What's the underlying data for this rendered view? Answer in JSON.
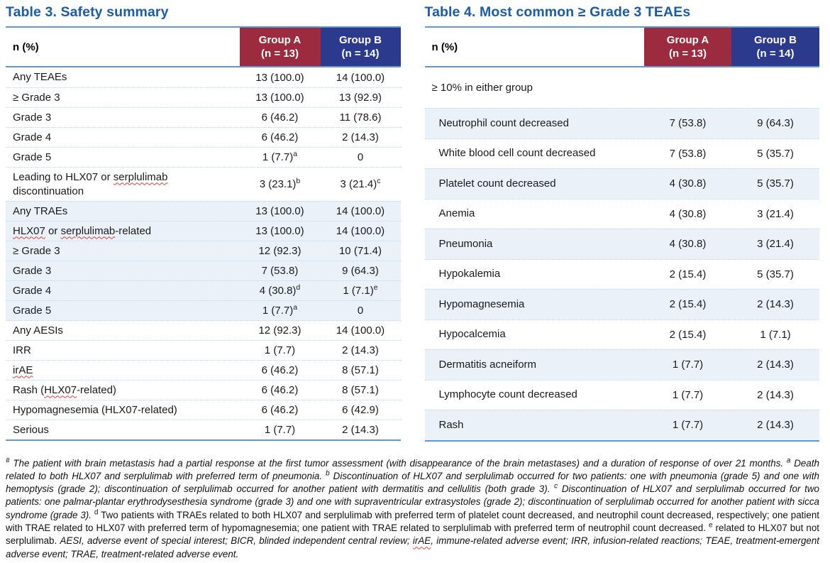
{
  "colors": {
    "title_blue": "#1A5CA8",
    "group_a_maroon": "#9C2B40",
    "group_b_navy": "#2B3A8C",
    "row_shade_blue": "#EBF1F8",
    "rule_blue": "#5B9BD5",
    "dotted_separator_blue": "#BDD7EE",
    "spellcheck_wavy_red": "#E03C31"
  },
  "tables": [
    {
      "title": "Table 3. Safety summary",
      "header_label": "n (%)",
      "groups": [
        {
          "name": "Group A",
          "n": "(n = 13)",
          "color": "#9C2B40"
        },
        {
          "name": "Group B",
          "n": "(n = 14)",
          "color": "#2B3A8C"
        }
      ],
      "rows": [
        {
          "label": "Any TEAEs",
          "indent": 0,
          "a": "13 (100.0)",
          "b": "14 (100.0)"
        },
        {
          "label": "≥ Grade 3",
          "indent": 1,
          "a": "13 (100.0)",
          "b": "13 (92.9)"
        },
        {
          "label": "Grade 3",
          "indent": 2,
          "a": "6 (46.2)",
          "b": "11 (78.6)"
        },
        {
          "label": "Grade 4",
          "indent": 2,
          "a": "6 (46.2)",
          "b": "2 (14.3)"
        },
        {
          "label": "Grade 5",
          "indent": 2,
          "a": "1 (7.7)",
          "a_sup": "a",
          "b": "0"
        },
        {
          "label": "Leading to HLX07 or serplulimab discontinuation",
          "indent": 1,
          "tall": true,
          "squiggles": [
            "serplulimab"
          ],
          "a": "3 (23.1)",
          "a_sup": "b",
          "b": "3 (21.4)",
          "b_sup": "c"
        },
        {
          "label": "Any TRAEs",
          "indent": 0,
          "shaded": true,
          "a": "13 (100.0)",
          "b": "14 (100.0)"
        },
        {
          "label": "HLX07 or serplulimab-related",
          "indent": 1,
          "shaded": true,
          "squiggles": [
            "HLX07",
            "serplulimab"
          ],
          "a": "13 (100.0)",
          "b": "14 (100.0)"
        },
        {
          "label": "≥ Grade 3",
          "indent": 2,
          "shaded": true,
          "a": "12 (92.3)",
          "b": "10 (71.4)"
        },
        {
          "label": "Grade 3",
          "indent": 3,
          "shaded": true,
          "a": "7 (53.8)",
          "b": "9 (64.3)"
        },
        {
          "label": "Grade 4",
          "indent": 3,
          "shaded": true,
          "a": "4 (30.8)",
          "a_sup": "d",
          "b": "1 (7.1)",
          "b_sup": "e"
        },
        {
          "label": "Grade 5",
          "indent": 3,
          "shaded": true,
          "a": "1 (7.7)",
          "a_sup": "a",
          "b": "0"
        },
        {
          "label": "Any AESIs",
          "indent": 0,
          "a": "12 (92.3)",
          "b": "14 (100.0)"
        },
        {
          "label": "IRR",
          "indent": 1,
          "a": "1 (7.7)",
          "b": "2 (14.3)"
        },
        {
          "label": "irAE",
          "indent": 1,
          "squiggles": [
            "irAE"
          ],
          "a": "6 (46.2)",
          "b": "8 (57.1)"
        },
        {
          "label": "Rash (HLX07-related)",
          "indent": 1,
          "squiggles": [
            "HLX07"
          ],
          "a": "6 (46.2)",
          "b": "8 (57.1)"
        },
        {
          "label": "Hypomagnesemia (HLX07-related)",
          "indent": 1,
          "a": "6 (46.2)",
          "b": "6 (42.9)"
        },
        {
          "label": "Serious",
          "indent": 1,
          "a": "1 (7.7)",
          "b": "2 (14.3)"
        }
      ]
    },
    {
      "title": "Table 4. Most common ≥ Grade 3 TEAEs",
      "header_label": "n (%)",
      "groups": [
        {
          "name": "Group A",
          "n": "(n = 13)",
          "color": "#9C2B40"
        },
        {
          "name": "Group B",
          "n": "(n = 14)",
          "color": "#2B3A8C"
        }
      ],
      "section_label": "≥ 10% in either group",
      "rows": [
        {
          "label": "Neutrophil count decreased",
          "indent": 0,
          "shaded": true,
          "a": "7 (53.8)",
          "b": "9 (64.3)"
        },
        {
          "label": "White blood cell count decreased",
          "indent": 0,
          "a": "7 (53.8)",
          "b": "5 (35.7)"
        },
        {
          "label": "Platelet count decreased",
          "indent": 0,
          "shaded": true,
          "a": "4 (30.8)",
          "b": "5 (35.7)"
        },
        {
          "label": "Anemia",
          "indent": 0,
          "a": "4 (30.8)",
          "b": "3 (21.4)"
        },
        {
          "label": "Pneumonia",
          "indent": 0,
          "shaded": true,
          "a": "4 (30.8)",
          "b": "3 (21.4)"
        },
        {
          "label": "Hypokalemia",
          "indent": 0,
          "a": "2 (15.4)",
          "b": "5 (35.7)"
        },
        {
          "label": "Hypomagnesemia",
          "indent": 0,
          "shaded": true,
          "a": "2 (15.4)",
          "b": "2 (14.3)"
        },
        {
          "label": "Hypocalcemia",
          "indent": 0,
          "a": "2 (15.4)",
          "b": "1 (7.1)"
        },
        {
          "label": "Dermatitis acneiform",
          "indent": 0,
          "shaded": true,
          "a": "1 (7.7)",
          "b": "2 (14.3)"
        },
        {
          "label": "Lymphocyte count decreased",
          "indent": 0,
          "a": "1 (7.7)",
          "b": "2 (14.3)"
        },
        {
          "label": "Rash",
          "indent": 0,
          "shaded": true,
          "a": "1 (7.7)",
          "b": "2 (14.3)"
        }
      ]
    }
  ],
  "footnote": {
    "segments": [
      {
        "sup": "#",
        "italic": true
      },
      {
        "text": " The patient with brain metastasis had a partial response at the first tumor assessment (with disappearance of the brain metastases) and a duration of response of over 21 months. ",
        "italic": true
      },
      {
        "sup": "a",
        "italic": true
      },
      {
        "text": " Death related to both HLX07 and serplulimab with preferred term of pneumonia. ",
        "italic": true
      },
      {
        "sup": "b",
        "italic": true
      },
      {
        "text": " Discontinuation of HLX07 and serplulimab occurred for two patients: one with pneumonia (grade 5) and one with hemoptysis (grade 2); discontinuation of serplulimab occurred for another patient with dermatitis and cellulitis (both grade 3). ",
        "italic": true
      },
      {
        "sup": "c",
        "italic": true
      },
      {
        "text": " Discontinuation of HLX07 and serplulimab occurred for two patients: one palmar-plantar erythrodysesthesia syndrome (grade 3) and one with supraventricular extrasystoles (grade 2); discontinuation of serplulimab occurred for another patient with sicca syndrome (grade 3). ",
        "italic": true
      },
      {
        "sup": "d",
        "italic": false
      },
      {
        "text": " Two patients with TRAEs related to both HLX07 and serplulimab with preferred term of platelet count decreased, and neutrophil count decreased, respectively; one patient with TRAE related to HLX07 with preferred term of hypomagnesemia; one patient with TRAE related to serplulimab with preferred term of neutrophil count decreased. ",
        "italic": false
      },
      {
        "sup": "e",
        "italic": false
      },
      {
        "text": " related to HLX07 but not serplulimab. ",
        "italic": false
      },
      {
        "text": "AESI, adverse event of special interest; BICR, blinded independent central review; ",
        "italic": true
      },
      {
        "text": "irAE",
        "italic": true,
        "squiggle": true
      },
      {
        "text": ", immune-related adverse event; IRR, infusion-related reactions; TEAE, treatment-emergent adverse event; TRAE, treatment-related adverse event.",
        "italic": true
      }
    ]
  }
}
